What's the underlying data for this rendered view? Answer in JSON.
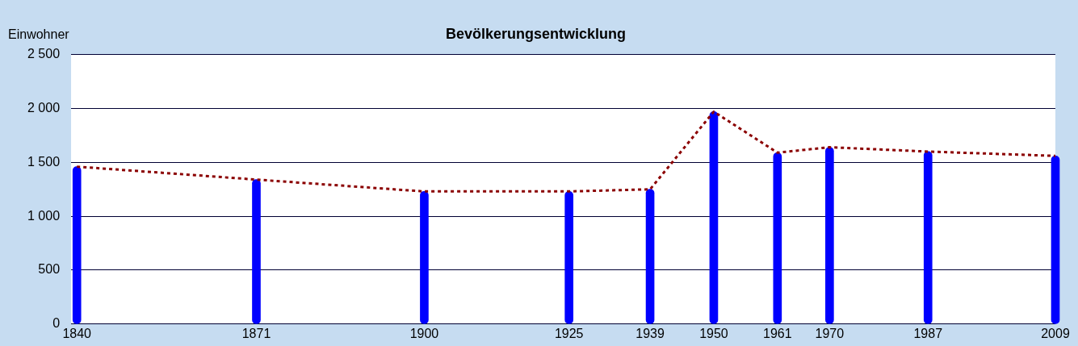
{
  "chart_data": {
    "type": "bar",
    "title": "Bevölkerungsentwicklung",
    "ylabel": "Einwohner",
    "x": [
      1840,
      1871,
      1900,
      1925,
      1939,
      1950,
      1961,
      1970,
      1987,
      2009
    ],
    "series": [
      {
        "color": "#0000ff",
        "values": [
          1460,
          1340,
          1230,
          1230,
          1250,
          1970,
          1590,
          1640,
          1600,
          1560
        ]
      },
      {
        "type": "line",
        "color": "#8b0000",
        "line_style": "dotted",
        "marker": "none",
        "values": [
          1460,
          1340,
          1230,
          1230,
          1250,
          1970,
          1590,
          1640,
          1600,
          1560
        ]
      }
    ],
    "xlim": [
      1839,
      2009
    ],
    "xticks": [
      1840,
      1871,
      1900,
      1925,
      1939,
      1950,
      1961,
      1970,
      1987,
      2009
    ],
    "ylim": [
      0,
      2500
    ],
    "yticks": [
      0,
      500,
      {
        "value": 1000,
        "label": "1 000"
      },
      {
        "value": 1500,
        "label": "1 500"
      },
      {
        "value": 2000,
        "label": "2 000"
      },
      {
        "value": 2500,
        "label": "2 500"
      }
    ],
    "grid": "y",
    "legend": false
  }
}
